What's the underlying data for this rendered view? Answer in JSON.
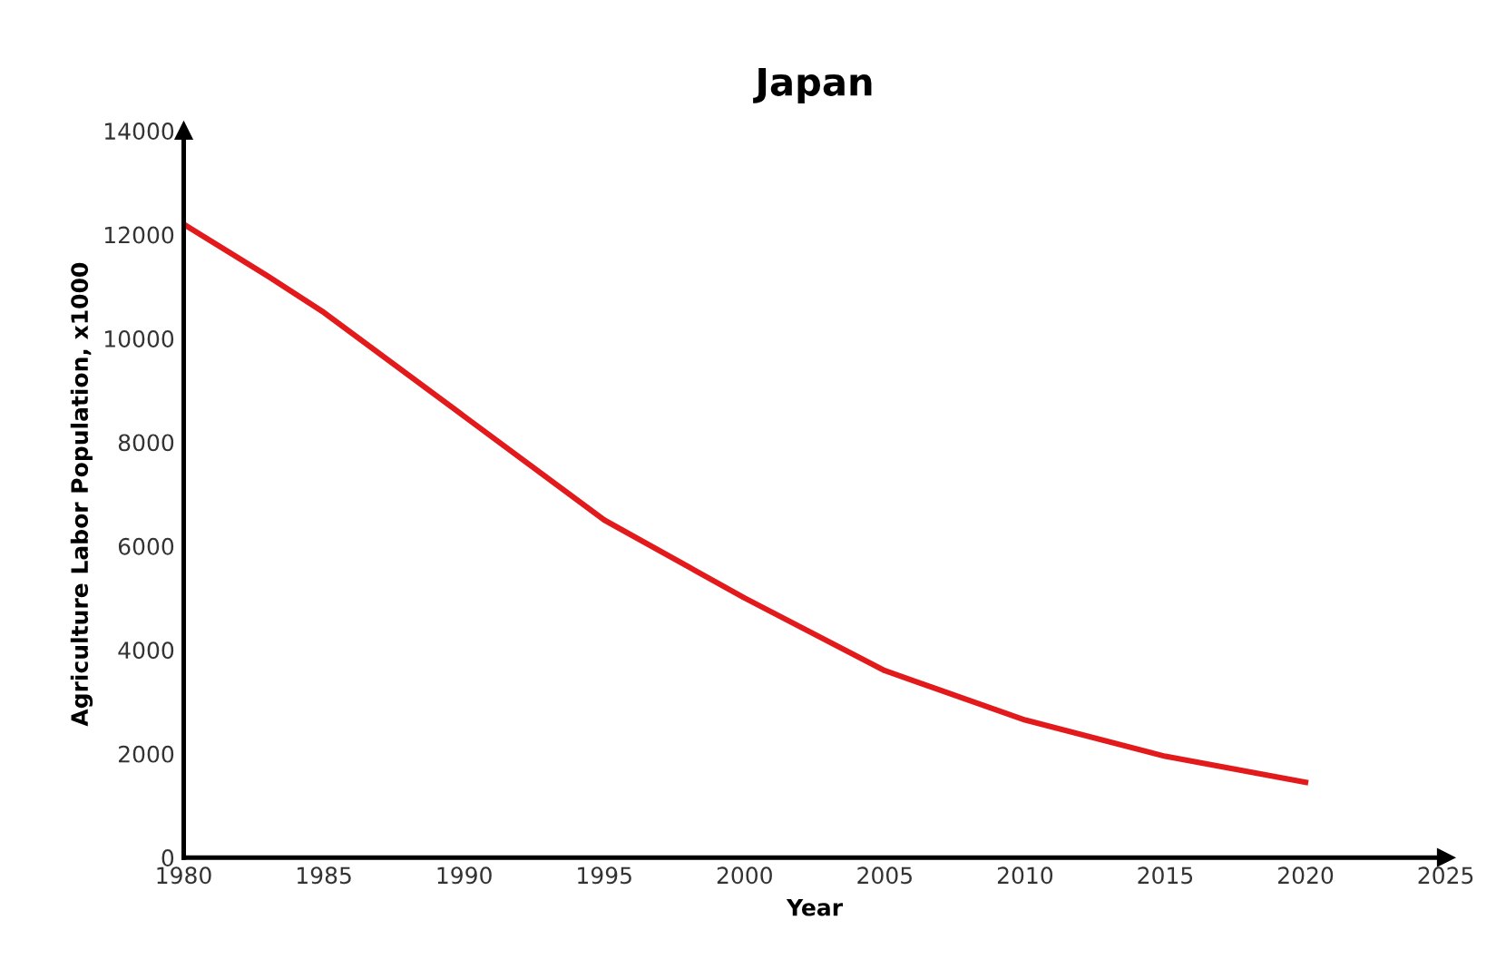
{
  "chart_data": {
    "type": "line",
    "title": "Japan",
    "xlabel": "Year",
    "ylabel": "Agriculture Labor Population, x1000",
    "x": [
      1980,
      1983,
      1985,
      1990,
      1995,
      2000,
      2005,
      2010,
      2015,
      2020
    ],
    "series": [
      {
        "color": "#e31a1c",
        "values": [
          12200,
          11200,
          10500,
          8500,
          6500,
          5000,
          3600,
          2650,
          1950,
          1450
        ]
      }
    ],
    "xlim": [
      1980,
      2025
    ],
    "xticks": [
      1980,
      1985,
      1990,
      1995,
      2000,
      2005,
      2010,
      2015,
      2020,
      2025
    ],
    "ylim": [
      0,
      14000
    ],
    "yticks": [
      0,
      2000,
      4000,
      6000,
      8000,
      10000,
      12000,
      14000
    ],
    "grid": false,
    "legend": false
  }
}
